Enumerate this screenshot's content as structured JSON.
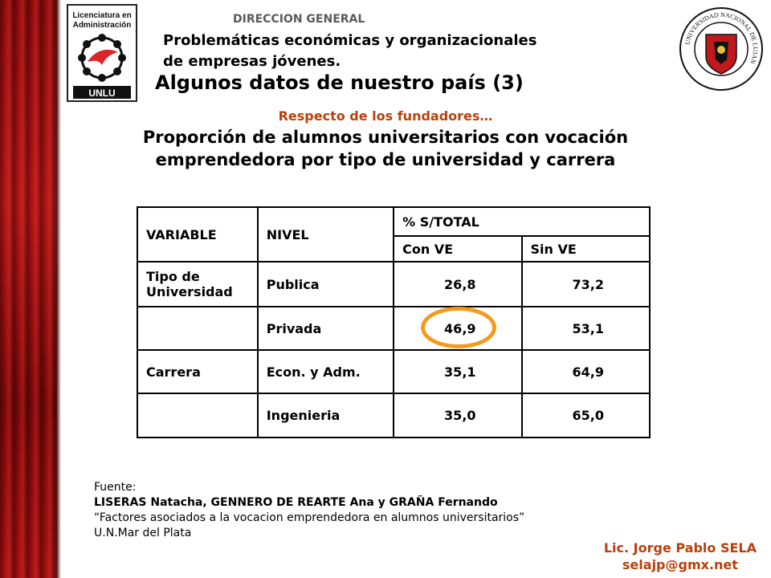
{
  "header": {
    "organization": "DIRECCION GENERAL",
    "subtitle_line1": "Problemáticas económicas y organizacionales",
    "subtitle_line2": "de empresas jóvenes.",
    "title": "Algunos datos de nuestro país (3)"
  },
  "logo_left": {
    "line1": "Licenciatura en",
    "line2": "Administración",
    "footer": "UNLU"
  },
  "seal": {
    "text": "UNIVERSIDAD NACIONAL DE LUJAN"
  },
  "section": "Respecto de los fundadores…",
  "table_title_line1": "Proporción de alumnos universitarios con vocación",
  "table_title_line2": "emprendedora por tipo de universidad y carrera",
  "table": {
    "headers": {
      "variable": "VARIABLE",
      "nivel": "NIVEL",
      "pct": "% S/TOTAL",
      "con_ve": "Con VE",
      "sin_ve": "Sin VE"
    },
    "rows": [
      {
        "variable": "Tipo de Universidad",
        "nivel": "Publica",
        "con_ve": "26,8",
        "sin_ve": "73,2"
      },
      {
        "variable": "",
        "nivel": "Privada",
        "con_ve": "46,9",
        "sin_ve": "53,1"
      },
      {
        "variable": "Carrera",
        "nivel": "Econ. y Adm.",
        "con_ve": "35,1",
        "sin_ve": "64,9"
      },
      {
        "variable": "",
        "nivel": "Ingenieria",
        "con_ve": "35,0",
        "sin_ve": "65,0"
      }
    ]
  },
  "source": {
    "label": "Fuente:",
    "authors": "LISERAS Natacha, GENNERO DE REARTE Ana y GRAÑA Fernando",
    "work": "“Factores asociados a la vocacion emprendedora en alumnos universitarios”",
    "place": "U.N.Mar del Plata"
  },
  "author": {
    "name": "Lic. Jorge Pablo SELA",
    "email": "selajp@gmx.net"
  },
  "colors": {
    "accent": "#b8400c",
    "highlight": "#f39b1c",
    "curtain": "#a80f0f"
  }
}
